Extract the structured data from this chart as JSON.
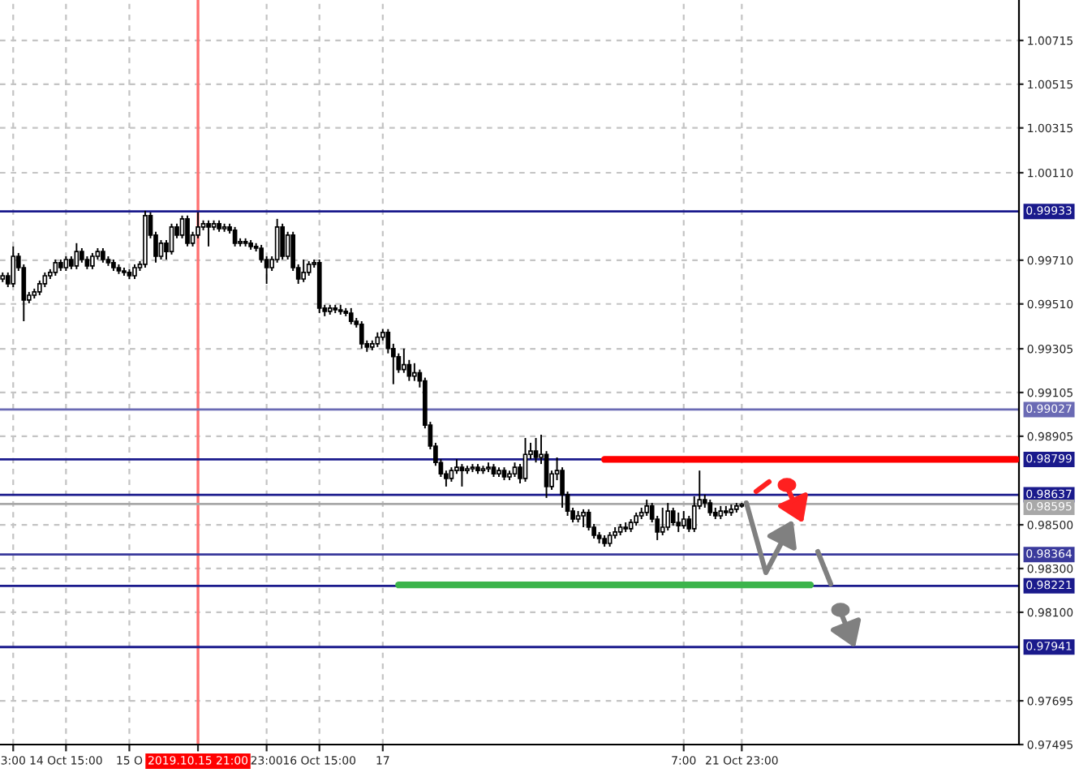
{
  "chart_data": {
    "type": "candlestick",
    "categories": [
      null,
      null,
      "3:00",
      null,
      null,
      null,
      null,
      null,
      null,
      null,
      null,
      null,
      "14 Oct 15:00",
      null,
      null,
      null,
      null,
      null,
      null,
      null,
      null,
      null,
      null,
      null,
      "15 O",
      null,
      null,
      null,
      null,
      null,
      null,
      null,
      null,
      null,
      null,
      null,
      null,
      "2019.10.15 21:00",
      null,
      null,
      null,
      null,
      null,
      null,
      null,
      null,
      null,
      null,
      null,
      null,
      "23:00",
      null,
      null,
      null,
      null,
      null,
      null,
      null,
      null,
      null,
      "16 Oct 15:00",
      null,
      null,
      null,
      null,
      null,
      null,
      null,
      null,
      null,
      null,
      null,
      "17",
      null,
      null,
      null,
      null,
      null,
      null,
      null,
      null,
      null,
      null,
      null,
      null,
      null,
      null,
      null,
      null,
      null,
      null,
      null,
      null,
      null,
      null,
      null,
      null,
      null,
      null,
      null,
      null,
      null,
      null,
      null,
      null,
      null,
      null,
      null,
      null,
      null,
      null,
      null,
      null,
      null,
      null,
      null,
      null,
      null,
      null,
      null,
      null,
      null,
      null,
      null,
      null,
      null,
      null,
      null,
      null,
      "7:00",
      null,
      null,
      null,
      null,
      null,
      null,
      null,
      null,
      null,
      null,
      "21 Oct 23:00",
      null,
      null,
      null,
      null,
      null,
      null,
      null,
      null,
      null,
      null,
      null,
      null,
      null,
      null,
      null,
      null,
      null,
      null,
      null,
      null,
      null,
      null,
      null,
      null,
      null,
      null,
      null,
      null,
      null,
      null,
      null,
      null,
      null,
      null,
      null,
      null,
      null,
      null,
      null,
      null,
      null,
      null,
      null,
      null,
      null,
      null,
      null,
      null,
      null,
      null,
      null,
      null
    ],
    "ohlc": [
      [
        0.99624,
        0.99654,
        0.9961,
        0.99639
      ],
      [
        0.99639,
        0.99654,
        0.99587,
        0.99602
      ],
      [
        0.99602,
        0.99773,
        0.99587,
        0.99728
      ],
      [
        0.99728,
        0.99743,
        0.99661,
        0.99676
      ],
      [
        0.99676,
        0.99691,
        0.99431,
        0.99528
      ],
      [
        0.99528,
        0.99565,
        0.99513,
        0.9955
      ],
      [
        0.9955,
        0.9958,
        0.99535,
        0.99565
      ],
      [
        0.99565,
        0.99617,
        0.9955,
        0.99602
      ],
      [
        0.99602,
        0.99654,
        0.99587,
        0.99639
      ],
      [
        0.99639,
        0.99669,
        0.99624,
        0.99654
      ],
      [
        0.99654,
        0.99713,
        0.99639,
        0.99699
      ],
      [
        0.99699,
        0.99713,
        0.99661,
        0.99676
      ],
      [
        0.99676,
        0.99728,
        0.99661,
        0.99713
      ],
      [
        0.99713,
        0.99728,
        0.99669,
        0.99684
      ],
      [
        0.99684,
        0.99788,
        0.99669,
        0.9975
      ],
      [
        0.9975,
        0.99765,
        0.99699,
        0.99713
      ],
      [
        0.99713,
        0.99728,
        0.99669,
        0.99684
      ],
      [
        0.99684,
        0.99743,
        0.99669,
        0.99728
      ],
      [
        0.99728,
        0.99765,
        0.99713,
        0.9975
      ],
      [
        0.9975,
        0.99765,
        0.99699,
        0.99713
      ],
      [
        0.99713,
        0.99728,
        0.99684,
        0.99699
      ],
      [
        0.99699,
        0.99713,
        0.99661,
        0.99676
      ],
      [
        0.99676,
        0.99691,
        0.99647,
        0.99661
      ],
      [
        0.99661,
        0.99676,
        0.99639,
        0.99654
      ],
      [
        0.99654,
        0.99669,
        0.99624,
        0.99639
      ],
      [
        0.99639,
        0.99691,
        0.99624,
        0.99676
      ],
      [
        0.99676,
        0.99706,
        0.99661,
        0.99691
      ],
      [
        0.99691,
        0.99936,
        0.99676,
        0.99914
      ],
      [
        0.99914,
        0.99929,
        0.9981,
        0.99825
      ],
      [
        0.99825,
        0.9984,
        0.99699,
        0.99728
      ],
      [
        0.99728,
        0.99802,
        0.99713,
        0.99788
      ],
      [
        0.99788,
        0.99802,
        0.99713,
        0.9975
      ],
      [
        0.9975,
        0.99877,
        0.99736,
        0.99862
      ],
      [
        0.99862,
        0.99877,
        0.9981,
        0.99825
      ],
      [
        0.99825,
        0.99914,
        0.9981,
        0.99899
      ],
      [
        0.99899,
        0.99914,
        0.99773,
        0.99788
      ],
      [
        0.99788,
        0.9984,
        0.99773,
        0.99825
      ],
      [
        0.99825,
        0.99929,
        0.9981,
        0.99862
      ],
      [
        0.99862,
        0.99892,
        0.99847,
        0.99877
      ],
      [
        0.99877,
        0.99892,
        0.99773,
        0.99862
      ],
      [
        0.99862,
        0.99892,
        0.99847,
        0.99877
      ],
      [
        0.99877,
        0.99892,
        0.9984,
        0.99854
      ],
      [
        0.99854,
        0.99877,
        0.9984,
        0.99862
      ],
      [
        0.99862,
        0.99877,
        0.99832,
        0.99847
      ],
      [
        0.99847,
        0.99862,
        0.99773,
        0.99788
      ],
      [
        0.99788,
        0.9981,
        0.99773,
        0.99795
      ],
      [
        0.99795,
        0.9981,
        0.99773,
        0.99788
      ],
      [
        0.99788,
        0.99802,
        0.99758,
        0.99773
      ],
      [
        0.99773,
        0.99788,
        0.9975,
        0.99765
      ],
      [
        0.99765,
        0.9978,
        0.99699,
        0.99713
      ],
      [
        0.99713,
        0.99728,
        0.99602,
        0.99676
      ],
      [
        0.99676,
        0.99728,
        0.99661,
        0.99713
      ],
      [
        0.99713,
        0.99899,
        0.99699,
        0.99862
      ],
      [
        0.99862,
        0.99877,
        0.99713,
        0.99728
      ],
      [
        0.99728,
        0.9984,
        0.99713,
        0.99825
      ],
      [
        0.99825,
        0.9984,
        0.99661,
        0.99676
      ],
      [
        0.99676,
        0.99691,
        0.99602,
        0.99624
      ],
      [
        0.99624,
        0.99713,
        0.9961,
        0.99654
      ],
      [
        0.99654,
        0.99706,
        0.99639,
        0.99691
      ],
      [
        0.99691,
        0.99713,
        0.99676,
        0.99699
      ],
      [
        0.99699,
        0.99713,
        0.99468,
        0.99491
      ],
      [
        0.99491,
        0.99506,
        0.99454,
        0.99476
      ],
      [
        0.99476,
        0.99506,
        0.99461,
        0.99491
      ],
      [
        0.99491,
        0.99506,
        0.99468,
        0.99483
      ],
      [
        0.99483,
        0.99506,
        0.99461,
        0.99476
      ],
      [
        0.99476,
        0.99491,
        0.99454,
        0.99468
      ],
      [
        0.99468,
        0.99491,
        0.99417,
        0.99431
      ],
      [
        0.99431,
        0.99446,
        0.99402,
        0.99417
      ],
      [
        0.99417,
        0.99431,
        0.99306,
        0.99328
      ],
      [
        0.99328,
        0.99343,
        0.99291,
        0.99313
      ],
      [
        0.99313,
        0.99343,
        0.99298,
        0.99328
      ],
      [
        0.99328,
        0.9938,
        0.99313,
        0.99358
      ],
      [
        0.99358,
        0.99395,
        0.99343,
        0.9938
      ],
      [
        0.9938,
        0.99395,
        0.99284,
        0.99306
      ],
      [
        0.99306,
        0.99328,
        0.99143,
        0.99269
      ],
      [
        0.99269,
        0.99284,
        0.99195,
        0.9921
      ],
      [
        0.9921,
        0.99306,
        0.99195,
        0.99232
      ],
      [
        0.99232,
        0.99254,
        0.99158,
        0.9918
      ],
      [
        0.9918,
        0.99239,
        0.99158,
        0.99195
      ],
      [
        0.99195,
        0.9921,
        0.99128,
        0.99158
      ],
      [
        0.99158,
        0.99173,
        0.98941,
        0.98956
      ],
      [
        0.98956,
        0.98971,
        0.98845,
        0.9886
      ],
      [
        0.9886,
        0.98875,
        0.9877,
        0.98785
      ],
      [
        0.98785,
        0.988,
        0.98719,
        0.98733
      ],
      [
        0.98733,
        0.98748,
        0.98675,
        0.98712
      ],
      [
        0.98712,
        0.98763,
        0.98697,
        0.98748
      ],
      [
        0.98748,
        0.988,
        0.98733,
        0.98763
      ],
      [
        0.98763,
        0.98778,
        0.98675,
        0.98748
      ],
      [
        0.98748,
        0.9877,
        0.98733,
        0.98756
      ],
      [
        0.98756,
        0.98778,
        0.98741,
        0.98763
      ],
      [
        0.98763,
        0.98778,
        0.98733,
        0.98748
      ],
      [
        0.98748,
        0.9877,
        0.98733,
        0.98756
      ],
      [
        0.98756,
        0.98785,
        0.98741,
        0.98763
      ],
      [
        0.98763,
        0.98778,
        0.98719,
        0.98733
      ],
      [
        0.98733,
        0.98763,
        0.98719,
        0.98748
      ],
      [
        0.98748,
        0.98763,
        0.98704,
        0.98719
      ],
      [
        0.98719,
        0.98748,
        0.98704,
        0.98733
      ],
      [
        0.98733,
        0.98785,
        0.98719,
        0.98763
      ],
      [
        0.98763,
        0.98778,
        0.98689,
        0.98712
      ],
      [
        0.98712,
        0.98897,
        0.98697,
        0.98822
      ],
      [
        0.98822,
        0.98875,
        0.988,
        0.98837
      ],
      [
        0.98837,
        0.98897,
        0.98785,
        0.98808
      ],
      [
        0.98808,
        0.98912,
        0.98778,
        0.98822
      ],
      [
        0.98822,
        0.98837,
        0.98623,
        0.98675
      ],
      [
        0.98675,
        0.98748,
        0.9866,
        0.98733
      ],
      [
        0.98733,
        0.98808,
        0.98704,
        0.98748
      ],
      [
        0.98748,
        0.98763,
        0.98578,
        0.98638
      ],
      [
        0.98638,
        0.98652,
        0.98541,
        0.98563
      ],
      [
        0.98563,
        0.98578,
        0.98511,
        0.98526
      ],
      [
        0.98526,
        0.98563,
        0.98511,
        0.98541
      ],
      [
        0.98541,
        0.98571,
        0.98489,
        0.98556
      ],
      [
        0.98556,
        0.98571,
        0.98474,
        0.98489
      ],
      [
        0.98489,
        0.98504,
        0.98437,
        0.98452
      ],
      [
        0.98452,
        0.98467,
        0.98415,
        0.98437
      ],
      [
        0.98437,
        0.98452,
        0.984,
        0.98415
      ],
      [
        0.98415,
        0.98467,
        0.984,
        0.98452
      ],
      [
        0.98452,
        0.98489,
        0.98437,
        0.98467
      ],
      [
        0.98467,
        0.98504,
        0.98452,
        0.98489
      ],
      [
        0.98489,
        0.98511,
        0.98467,
        0.98482
      ],
      [
        0.98482,
        0.98526,
        0.98467,
        0.98511
      ],
      [
        0.98511,
        0.98556,
        0.98496,
        0.98541
      ],
      [
        0.98541,
        0.98578,
        0.98526,
        0.98556
      ],
      [
        0.98556,
        0.98615,
        0.98541,
        0.98586
      ],
      [
        0.98586,
        0.986,
        0.98511,
        0.98526
      ],
      [
        0.98526,
        0.98541,
        0.9843,
        0.98467
      ],
      [
        0.98467,
        0.98578,
        0.98452,
        0.98489
      ],
      [
        0.98489,
        0.986,
        0.98474,
        0.98563
      ],
      [
        0.98563,
        0.98578,
        0.98496,
        0.98511
      ],
      [
        0.98511,
        0.98556,
        0.98467,
        0.98496
      ],
      [
        0.98496,
        0.98563,
        0.98482,
        0.98526
      ],
      [
        0.98526,
        0.98541,
        0.98467,
        0.98482
      ],
      [
        0.98482,
        0.9863,
        0.98467,
        0.98586
      ],
      [
        0.98586,
        0.98748,
        0.98571,
        0.98615
      ],
      [
        0.98615,
        0.98638,
        0.98578,
        0.986
      ],
      [
        0.986,
        0.98615,
        0.98541,
        0.98556
      ],
      [
        0.98556,
        0.98578,
        0.98526,
        0.98541
      ],
      [
        0.98541,
        0.98586,
        0.98526,
        0.98563
      ],
      [
        0.98563,
        0.98586,
        0.98541,
        0.98556
      ],
      [
        0.98556,
        0.98593,
        0.98541,
        0.98571
      ],
      [
        0.98571,
        0.986,
        0.98556,
        0.98586
      ],
      [
        0.98586,
        0.986,
        0.98578,
        0.98593
      ],
      null,
      null,
      null,
      null,
      null,
      null,
      null,
      null,
      null,
      null,
      null,
      null,
      null,
      null,
      null,
      null,
      null,
      null,
      null,
      null,
      null,
      null,
      null,
      null,
      null,
      null,
      null,
      null,
      null,
      null,
      null,
      null,
      null,
      null,
      null,
      null,
      null,
      null,
      null,
      null,
      null,
      null,
      null,
      null,
      null,
      null,
      null,
      null,
      null,
      null,
      null,
      null
    ],
    "series": [
      {
        "type": "line",
        "color": "#ff0000",
        "values": [
          null,
          null,
          null,
          null,
          null,
          null,
          null,
          null,
          null,
          null,
          null,
          null,
          null,
          null,
          null,
          null,
          null,
          null,
          null,
          null,
          null,
          null,
          null,
          null,
          null,
          null,
          null,
          null,
          null,
          null,
          null,
          null,
          null,
          null,
          null,
          null,
          null,
          null,
          null,
          null,
          null,
          null,
          null,
          null,
          null,
          null,
          null,
          null,
          null,
          null,
          null,
          null,
          null,
          null,
          null,
          null,
          null,
          null,
          null,
          null,
          null,
          null,
          null,
          null,
          null,
          null,
          null,
          null,
          null,
          null,
          null,
          null,
          null,
          null,
          null,
          null,
          null,
          null,
          null,
          null,
          null,
          null,
          null,
          null,
          null,
          null,
          null,
          null,
          null,
          null,
          null,
          null,
          null,
          null,
          null,
          null,
          null,
          null,
          null,
          null,
          null,
          null,
          null,
          null,
          null,
          null,
          null,
          null,
          null,
          null,
          null,
          null,
          null,
          null,
          0.98799,
          0.98799,
          0.98799,
          0.98799,
          0.98799,
          0.98799,
          0.98799,
          0.98799,
          0.98799,
          0.98799,
          0.98799,
          0.98799,
          0.98799,
          0.98799,
          0.98799,
          0.98799,
          0.98799,
          0.98799,
          0.98799,
          0.98799,
          0.98799,
          0.98799,
          0.98799,
          0.98799,
          0.98799,
          0.98799,
          0.98799,
          0.98799,
          0.98799,
          0.98799,
          0.98799,
          0.98799,
          0.98799,
          0.98799,
          0.98799,
          0.98799,
          0.98799,
          0.98799,
          0.98799,
          0.98799,
          0.98799,
          0.98799,
          0.98799,
          0.98799,
          0.98799,
          0.98799,
          0.98799,
          0.98799,
          0.98799,
          0.98799,
          0.98799,
          0.98799,
          0.98799,
          0.98799,
          0.98799,
          0.98799,
          0.98799,
          0.98799,
          0.98799,
          0.98799,
          0.98799,
          0.98799,
          0.98799,
          0.98799,
          0.98799,
          0.98799,
          0.98799,
          0.98799,
          0.98799,
          0.98799,
          0.98799,
          0.98799,
          0.98799,
          0.98799,
          0.98799,
          0.98799,
          0.98799,
          0.98799,
          0.98799
        ]
      },
      {
        "type": "line",
        "color": "#3cb44b",
        "values": [
          null,
          null,
          null,
          null,
          null,
          null,
          null,
          null,
          null,
          null,
          null,
          null,
          null,
          null,
          null,
          null,
          null,
          null,
          null,
          null,
          null,
          null,
          null,
          null,
          null,
          null,
          null,
          null,
          null,
          null,
          null,
          null,
          null,
          null,
          null,
          null,
          null,
          null,
          null,
          null,
          null,
          null,
          null,
          null,
          null,
          null,
          null,
          null,
          null,
          null,
          null,
          null,
          null,
          null,
          null,
          null,
          null,
          null,
          null,
          null,
          null,
          null,
          null,
          null,
          null,
          null,
          null,
          null,
          null,
          null,
          null,
          null,
          null,
          null,
          null,
          0.98225,
          0.98225,
          0.98225,
          0.98225,
          0.98225,
          0.98225,
          0.98225,
          0.98225,
          0.98225,
          0.98225,
          0.98225,
          0.98225,
          0.98225,
          0.98225,
          0.98225,
          0.98225,
          0.98225,
          0.98225,
          0.98225,
          0.98225,
          0.98225,
          0.98225,
          0.98225,
          0.98225,
          0.98225,
          0.98225,
          0.98225,
          0.98225,
          0.98225,
          0.98225,
          0.98225,
          0.98225,
          0.98225,
          0.98225,
          0.98225,
          0.98225,
          0.98225,
          0.98225,
          0.98225,
          0.98225,
          0.98225,
          0.98225,
          0.98225,
          0.98225,
          0.98225,
          0.98225,
          0.98225,
          0.98225,
          0.98225,
          0.98225,
          0.98225,
          0.98225,
          0.98225,
          0.98225,
          0.98225,
          0.98225,
          0.98225,
          0.98225,
          0.98225,
          0.98225,
          0.98225,
          0.98225,
          0.98225,
          0.98225,
          0.98225,
          0.98225,
          0.98225,
          0.98225,
          0.98225,
          0.98225,
          0.98225,
          0.98225,
          0.98225,
          0.98225,
          0.98225,
          0.98225,
          0.98225,
          0.98225,
          0.98225,
          null,
          null,
          null,
          null,
          null,
          null,
          null,
          null,
          null,
          null,
          null,
          null,
          null,
          null,
          null,
          null,
          null,
          null,
          null,
          null,
          null,
          null,
          null,
          null,
          null,
          null,
          null,
          null,
          null,
          null,
          null,
          null,
          null,
          null,
          null,
          null,
          null,
          null,
          null
        ]
      }
    ],
    "ylim": [
      0.97495,
      1.009
    ],
    "yticks": [
      {
        "value": 1.00715,
        "label": "1.00715"
      },
      {
        "value": 1.00515,
        "label": "1.00515"
      },
      {
        "value": 1.00315,
        "label": "1.00315"
      },
      {
        "value": 1.0011,
        "label": "1.00110"
      },
      {
        "value": 0.9971,
        "label": "0.99710"
      },
      {
        "value": 0.9951,
        "label": "0.99510"
      },
      {
        "value": 0.99305,
        "label": "0.99305"
      },
      {
        "value": 0.99105,
        "label": "0.99105"
      },
      {
        "value": 0.98905,
        "label": "0.98905"
      },
      {
        "value": 0.985,
        "label": "0.98500"
      },
      {
        "value": 0.983,
        "label": "0.98300"
      },
      {
        "value": 0.981,
        "label": "0.98100"
      },
      {
        "value": 0.97695,
        "label": "0.97695"
      },
      {
        "value": 0.97495,
        "label": "0.97495"
      }
    ],
    "ref_lines": [
      {
        "axis": "x",
        "value": "2019.10.15 21:00",
        "color": "#ff7070"
      },
      {
        "axis": "y",
        "value": 0.99933,
        "label": "0.99933",
        "color": "#1a1a8c"
      },
      {
        "axis": "y",
        "value": 0.99027,
        "label": "0.99027",
        "color": "#6a6ab4"
      },
      {
        "axis": "y",
        "value": 0.98799,
        "label": "0.98799",
        "color": "#1a1a8c"
      },
      {
        "axis": "y",
        "value": 0.98637,
        "label": "0.98637",
        "color": "#1a1a8c"
      },
      {
        "axis": "y",
        "value": 0.98595,
        "label": "0.98595",
        "color": "#a8a8a8"
      },
      {
        "axis": "y",
        "value": 0.98364,
        "label": "0.98364",
        "color": "#3a3a9c"
      },
      {
        "axis": "y",
        "value": 0.98221,
        "label": "0.98221",
        "color": "#1a1a8c"
      },
      {
        "axis": "y",
        "value": 0.97941,
        "label": "0.97941",
        "color": "#1a1a8c"
      }
    ],
    "grid": true
  }
}
